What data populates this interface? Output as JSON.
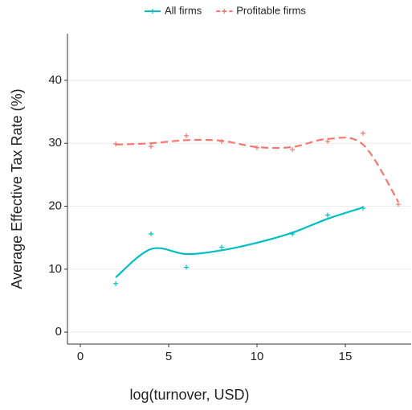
{
  "chart_data": {
    "type": "line",
    "x_label": "log(turnover, USD)",
    "y_label": "Average Effective Tax Rate (%)",
    "xlim": [
      -0.73,
      18.73
    ],
    "ylim": [
      -1.9,
      47.4
    ],
    "xticks": [
      0,
      5,
      10,
      15
    ],
    "yticks": [
      0,
      10,
      20,
      30,
      40
    ],
    "grid": true,
    "legend": "top",
    "series": [
      {
        "name": "All firms",
        "color": "#00bfc4",
        "linestyle": "solid",
        "x": [
          2,
          4,
          6,
          8,
          10,
          12,
          14,
          16
        ],
        "values": [
          7.7,
          15.6,
          10.3,
          13.5,
          null,
          15.6,
          18.6,
          19.7
        ],
        "trend": [
          8.7,
          13.2,
          12.4,
          13.0,
          14.2,
          15.8,
          18.0,
          19.8
        ]
      },
      {
        "name": "Profitable firms",
        "color": "#f8766d",
        "linestyle": "dashed",
        "x": [
          2,
          4,
          6,
          8,
          10,
          12,
          14,
          16,
          18
        ],
        "values": [
          29.9,
          29.5,
          31.2,
          30.3,
          29.3,
          29.0,
          30.3,
          31.6,
          20.3
        ],
        "trend": [
          29.8,
          30.0,
          30.5,
          30.4,
          29.4,
          29.4,
          30.7,
          29.8,
          20.7
        ]
      }
    ]
  }
}
